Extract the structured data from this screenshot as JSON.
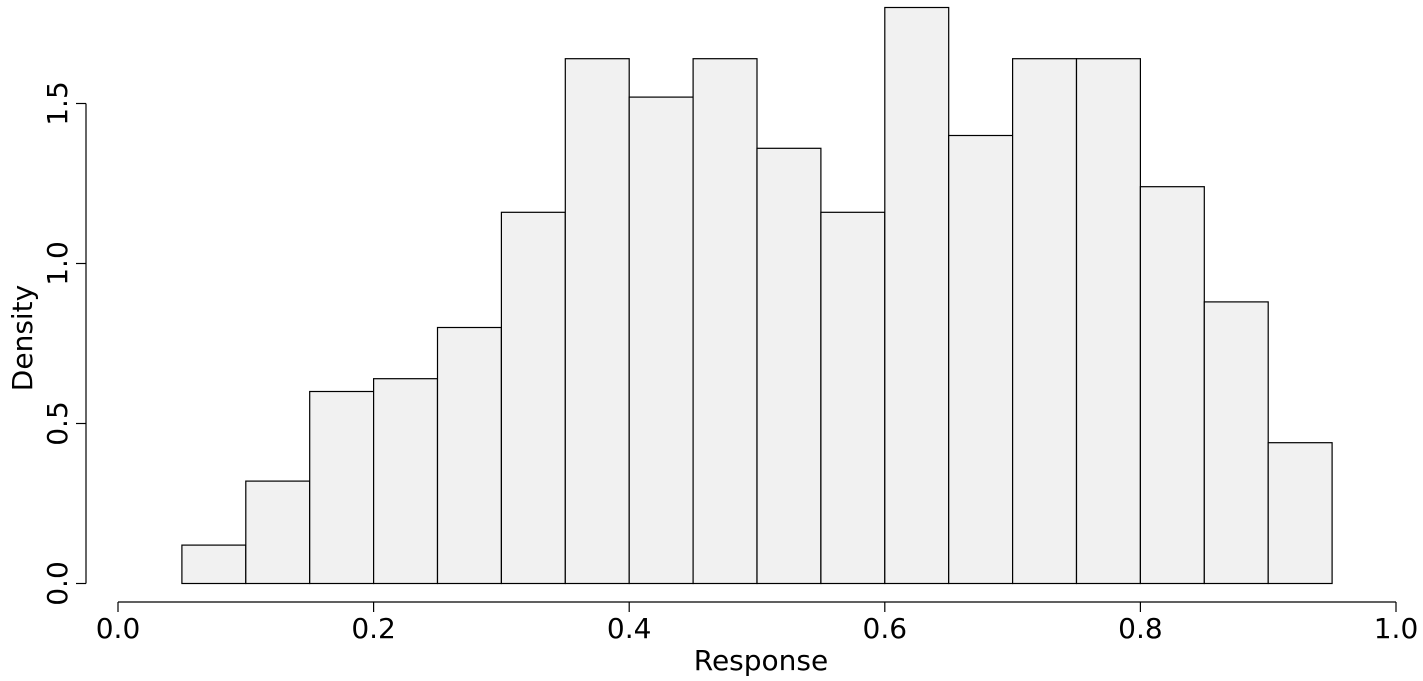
{
  "chart_data": {
    "type": "bar",
    "bins": [
      {
        "x0": 0.05,
        "x1": 0.1,
        "density": 0.12
      },
      {
        "x0": 0.1,
        "x1": 0.15,
        "density": 0.32
      },
      {
        "x0": 0.15,
        "x1": 0.2,
        "density": 0.6
      },
      {
        "x0": 0.2,
        "x1": 0.25,
        "density": 0.64
      },
      {
        "x0": 0.25,
        "x1": 0.3,
        "density": 0.8
      },
      {
        "x0": 0.3,
        "x1": 0.35,
        "density": 1.16
      },
      {
        "x0": 0.35,
        "x1": 0.4,
        "density": 1.64
      },
      {
        "x0": 0.4,
        "x1": 0.45,
        "density": 1.52
      },
      {
        "x0": 0.45,
        "x1": 0.5,
        "density": 1.64
      },
      {
        "x0": 0.5,
        "x1": 0.55,
        "density": 1.36
      },
      {
        "x0": 0.55,
        "x1": 0.6,
        "density": 1.16
      },
      {
        "x0": 0.6,
        "x1": 0.65,
        "density": 1.8
      },
      {
        "x0": 0.65,
        "x1": 0.7,
        "density": 1.4
      },
      {
        "x0": 0.7,
        "x1": 0.75,
        "density": 1.64
      },
      {
        "x0": 0.75,
        "x1": 0.8,
        "density": 1.64
      },
      {
        "x0": 0.8,
        "x1": 0.85,
        "density": 1.24
      },
      {
        "x0": 0.85,
        "x1": 0.9,
        "density": 0.88
      },
      {
        "x0": 0.9,
        "x1": 0.95,
        "density": 0.44
      }
    ],
    "xlabel": "Response",
    "ylabel": "Density",
    "xlim": [
      0.0,
      1.0
    ],
    "ylim": [
      0.0,
      1.5
    ],
    "xticks": [
      "0.0",
      "0.2",
      "0.4",
      "0.6",
      "0.8",
      "1.0"
    ],
    "yticks": [
      "0.0",
      "0.5",
      "1.0",
      "1.5"
    ],
    "grid": false,
    "bar_fill": "#f1f1f1",
    "bar_stroke": "#000000"
  }
}
